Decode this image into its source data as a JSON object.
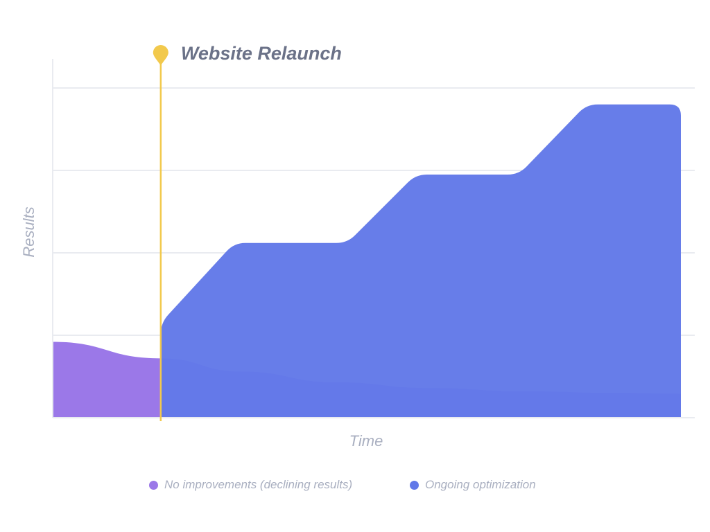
{
  "chart_data": {
    "type": "area",
    "title": "",
    "xlabel": "Time",
    "ylabel": "Results",
    "xlim": [
      0,
      100
    ],
    "ylim": [
      0,
      4
    ],
    "grid": true,
    "legend_position": "bottom",
    "annotation": {
      "label": "Website Relaunch",
      "x": 17.2,
      "color": "#f2c94c"
    },
    "series": [
      {
        "name": "No improvements (declining results)",
        "color": "#9b78e8",
        "x": [
          0,
          17.2,
          30,
          45,
          60,
          75,
          90,
          100
        ],
        "values": [
          0.92,
          0.72,
          0.56,
          0.43,
          0.36,
          0.32,
          0.3,
          0.29
        ]
      },
      {
        "name": "Ongoing optimization",
        "color": "#6279e8",
        "x": [
          17.2,
          17.2,
          28.9,
          46.9,
          57.8,
          74.2,
          85.0,
          100
        ],
        "values": [
          0,
          1.15,
          2.12,
          2.12,
          2.95,
          2.95,
          3.8,
          3.8
        ]
      }
    ]
  }
}
